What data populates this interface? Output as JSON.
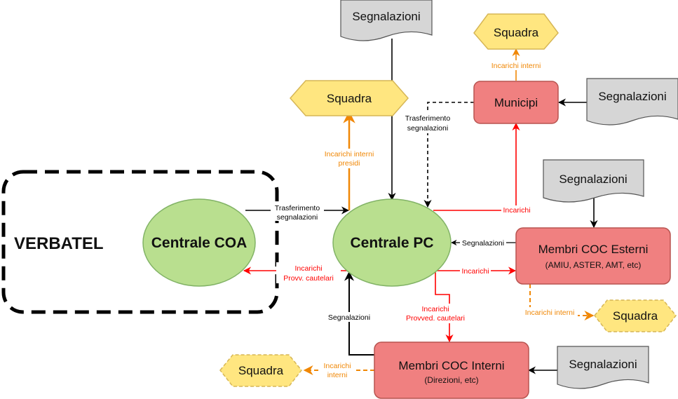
{
  "colors": {
    "green_fill": "#b9df8f",
    "green_stroke": "#82b366",
    "red_fill": "#f08080",
    "red_stroke": "#b85450",
    "yellow_fill": "#ffe680",
    "yellow_stroke": "#d6b656",
    "doc_fill": "#d6d6d6",
    "doc_stroke": "#555555",
    "black_edge": "#000000",
    "red_edge": "#ff0000",
    "orange_edge": "#f08705"
  },
  "groups": {
    "verbatel": "VERBATEL"
  },
  "nodes": {
    "centrale_coa": "Centrale COA",
    "centrale_pc": "Centrale PC",
    "municipi": "Municipi",
    "coc_esterni_title": "Membri COC Esterni",
    "coc_esterni_sub": "(AMIU, ASTER, AMT, etc)",
    "coc_interni_title": "Membri COC Interni",
    "coc_interni_sub": "(Direzioni, etc)",
    "squadra_municipi": "Squadra",
    "squadra_pc": "Squadra",
    "squadra_esterni": "Squadra",
    "squadra_interni": "Squadra",
    "doc_top": "Segnalazioni",
    "doc_municipi": "Segnalazioni",
    "doc_esterni": "Segnalazioni",
    "doc_interni": "Segnalazioni"
  },
  "edges": {
    "coa_to_pc_1": "Trasferimento",
    "coa_to_pc_2": "segnalazioni",
    "municipi_to_pc_1": "Trasferimento",
    "municipi_to_pc_2": "segnalazioni",
    "pc_squadra_1": "Incarichi interni",
    "pc_squadra_2": "presidi",
    "municipi_squadra": "Incarichi interni",
    "pc_municipi": "Incarichi",
    "esterni_to_pc": "Segnalazioni",
    "pc_esterni": "Incarichi",
    "pc_coa_1": "Incarichi",
    "pc_coa_2": "Provv. cautelari",
    "pc_interni_1": "Incarichi",
    "pc_interni_2": "Provved. cautelari",
    "interni_to_pc": "Segnalazioni",
    "esterni_squadra": "Incarichi interni",
    "interni_squadra_1": "Incarichi",
    "interni_squadra_2": "interni"
  }
}
